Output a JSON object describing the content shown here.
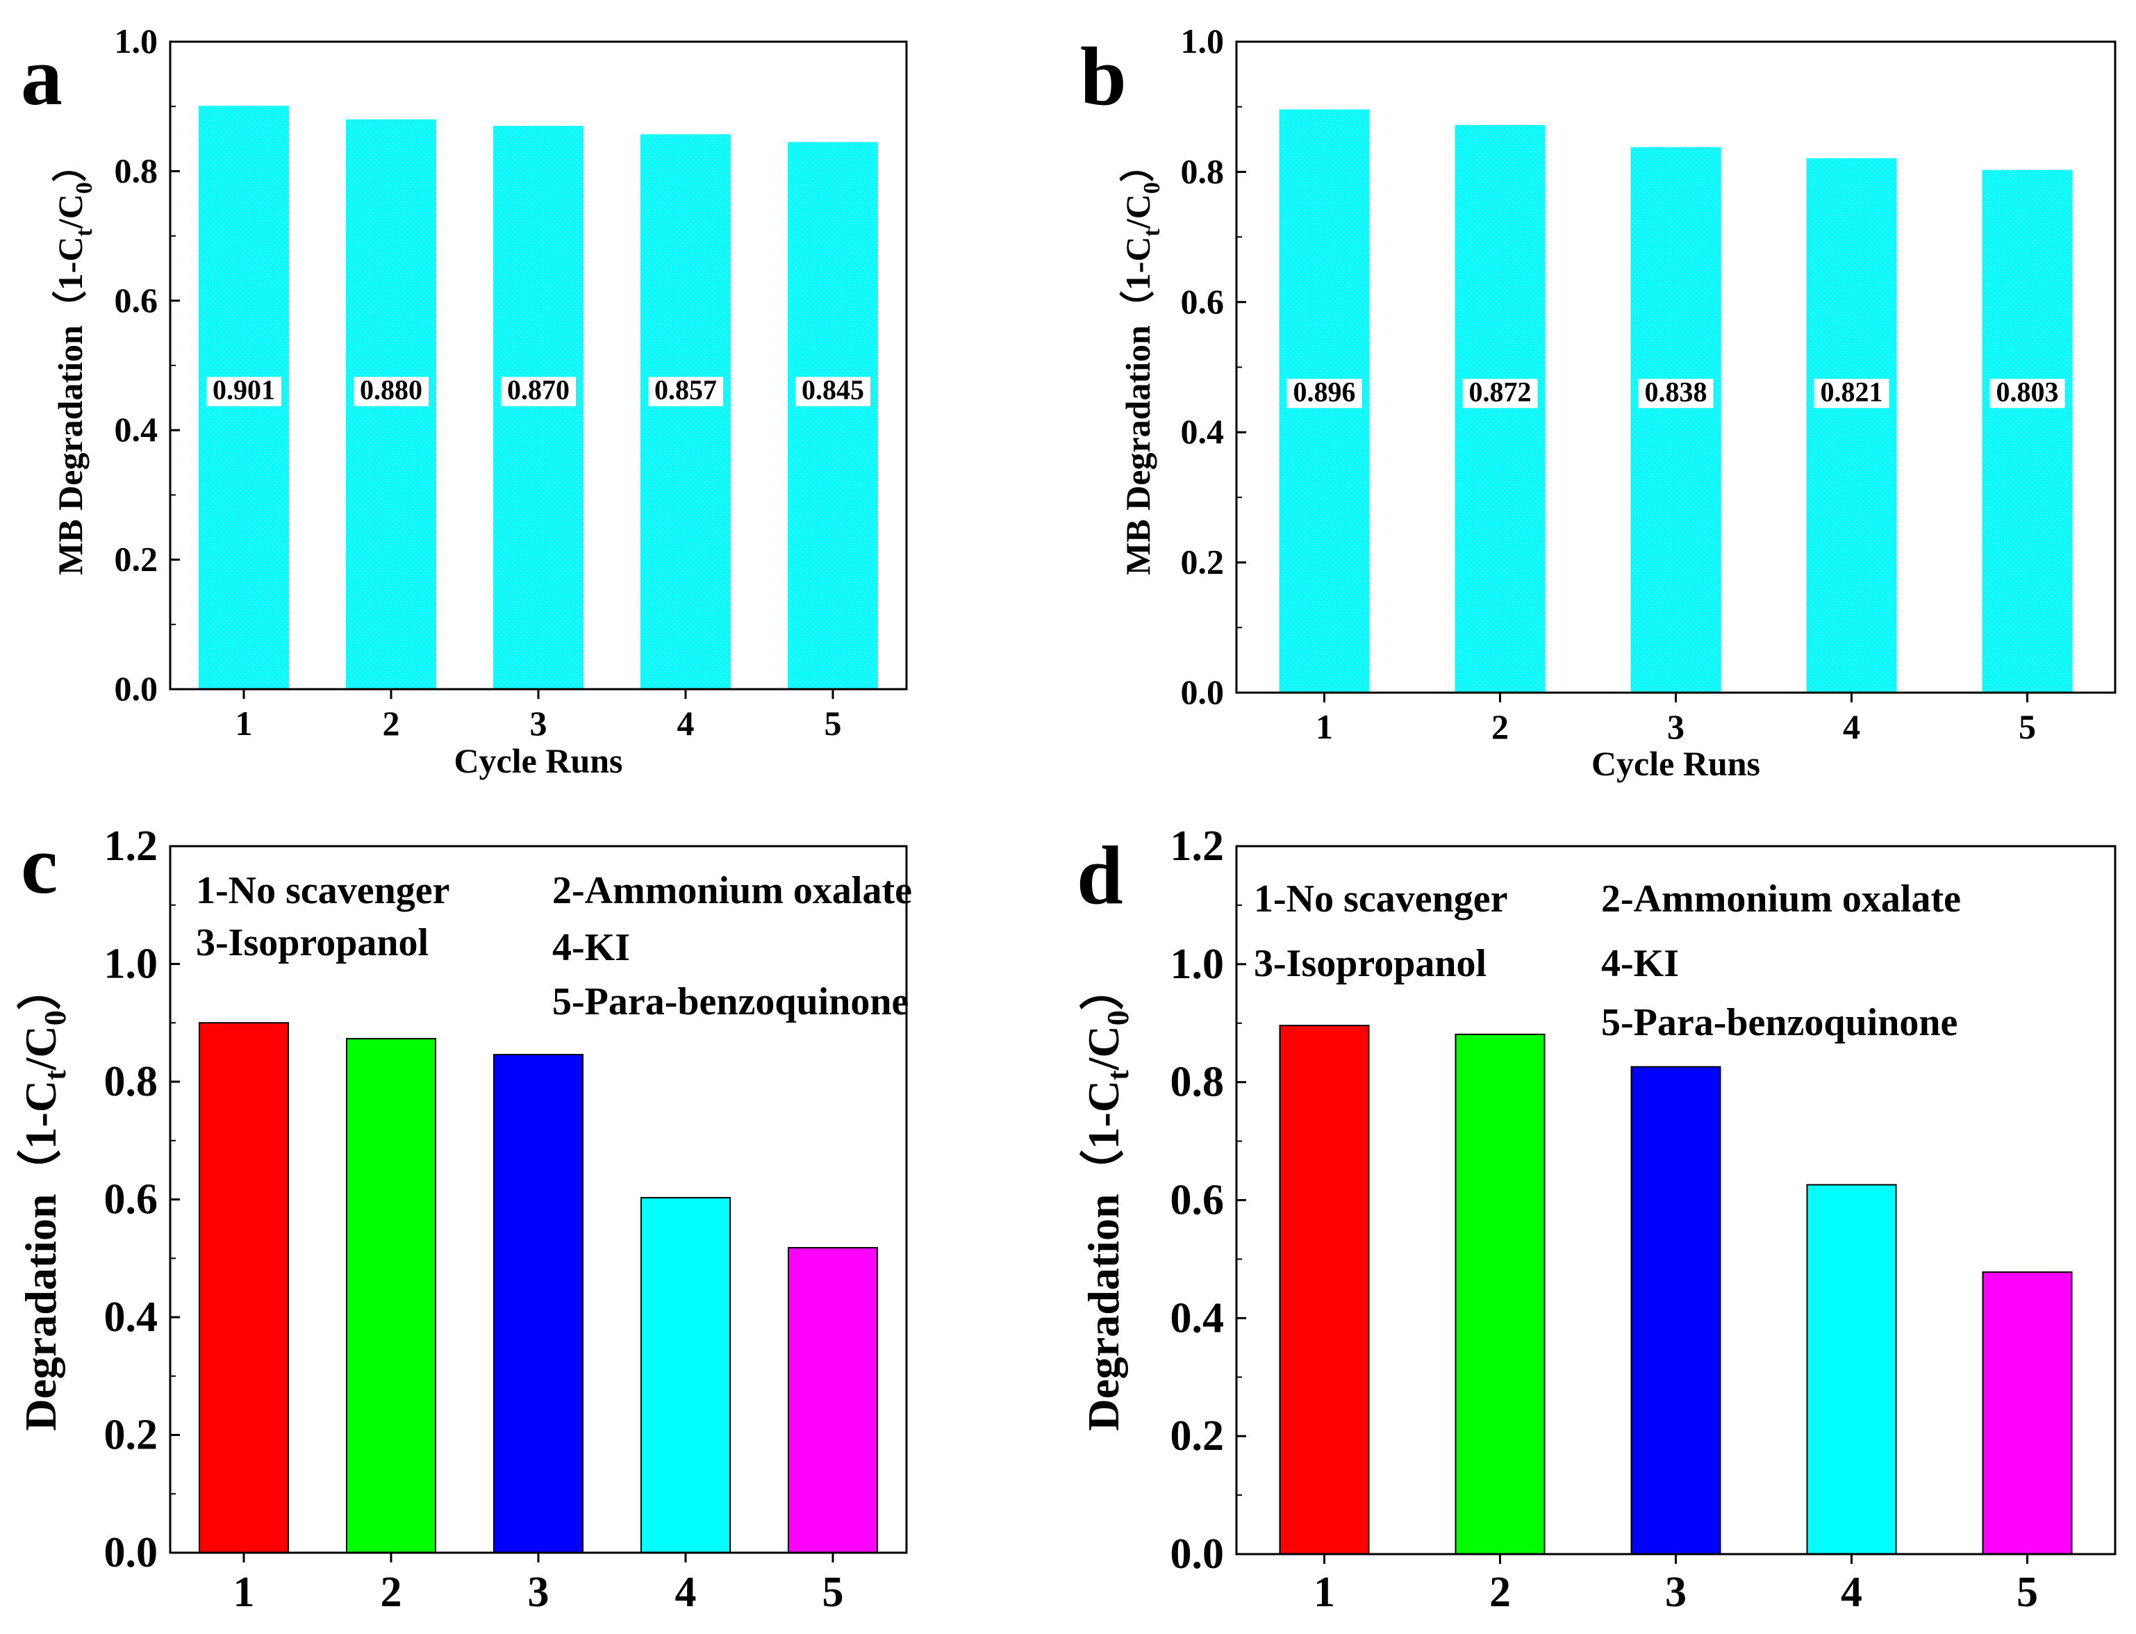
{
  "colors": {
    "cycle_bar": "#00ffff",
    "cycle_dots": "#5be6e6",
    "label_bg": "#ffffff",
    "bar_red": "#ff0000",
    "bar_green": "#00ff00",
    "bar_blue": "#0000ff",
    "bar_cyan": "#00ffff",
    "bar_magenta": "#ff00ff"
  },
  "chart_data": [
    {
      "panel": "a",
      "type": "bar",
      "categories": [
        "1",
        "2",
        "3",
        "4",
        "5"
      ],
      "values": [
        0.901,
        0.88,
        0.87,
        0.857,
        0.845
      ],
      "data_labels": [
        "0.901",
        "0.880",
        "0.870",
        "0.857",
        "0.845"
      ],
      "xlabel": "Cycle Runs",
      "ylabel": "MB Degradation（1-C",
      "ylabel_sub1": "t",
      "ylabel_mid": "/C",
      "ylabel_sub2": "0",
      "ylabel_close": "）",
      "ylim": [
        0,
        1.0
      ],
      "yticks": [
        "0.0",
        "0.2",
        "0.4",
        "0.6",
        "0.8",
        "1.0"
      ]
    },
    {
      "panel": "b",
      "type": "bar",
      "categories": [
        "1",
        "2",
        "3",
        "4",
        "5"
      ],
      "values": [
        0.896,
        0.872,
        0.838,
        0.821,
        0.803
      ],
      "data_labels": [
        "0.896",
        "0.872",
        "0.838",
        "0.821",
        "0.803"
      ],
      "xlabel": "Cycle Runs",
      "ylabel": "MB Degradation（1-C",
      "ylabel_sub1": "t",
      "ylabel_mid": "/C",
      "ylabel_sub2": "0",
      "ylabel_close": "）",
      "ylim": [
        0,
        1.0
      ],
      "yticks": [
        "0.0",
        "0.2",
        "0.4",
        "0.6",
        "0.8",
        "1.0"
      ]
    },
    {
      "panel": "c",
      "type": "bar",
      "categories": [
        "1",
        "2",
        "3",
        "4",
        "5"
      ],
      "values": [
        0.9,
        0.873,
        0.846,
        0.603,
        0.518
      ],
      "xlabel": "",
      "ylabel": "Degradation（1-C",
      "ylabel_sub1": "t",
      "ylabel_mid": "/C",
      "ylabel_sub2": "0",
      "ylabel_close": "）",
      "ylim": [
        0,
        1.2
      ],
      "yticks": [
        "0.0",
        "0.2",
        "0.4",
        "0.6",
        "0.8",
        "1.0",
        "1.2"
      ],
      "legend": [
        "1-No scavenger",
        "2-Ammonium oxalate",
        "3-Isopropanol",
        "4-KI",
        "5-Para-benzoquinone"
      ]
    },
    {
      "panel": "d",
      "type": "bar",
      "categories": [
        "1",
        "2",
        "3",
        "4",
        "5"
      ],
      "values": [
        0.896,
        0.881,
        0.826,
        0.626,
        0.478
      ],
      "xlabel": "",
      "ylabel": "Degradation（1-C",
      "ylabel_sub1": "t",
      "ylabel_mid": "/C",
      "ylabel_sub2": "0",
      "ylabel_close": "）",
      "ylim": [
        0,
        1.2
      ],
      "yticks": [
        "0.0",
        "0.2",
        "0.4",
        "0.6",
        "0.8",
        "1.0",
        "1.2"
      ],
      "legend": [
        "1-No scavenger",
        "2-Ammonium oxalate",
        "3-Isopropanol",
        "4-KI",
        "5-Para-benzoquinone"
      ]
    }
  ]
}
